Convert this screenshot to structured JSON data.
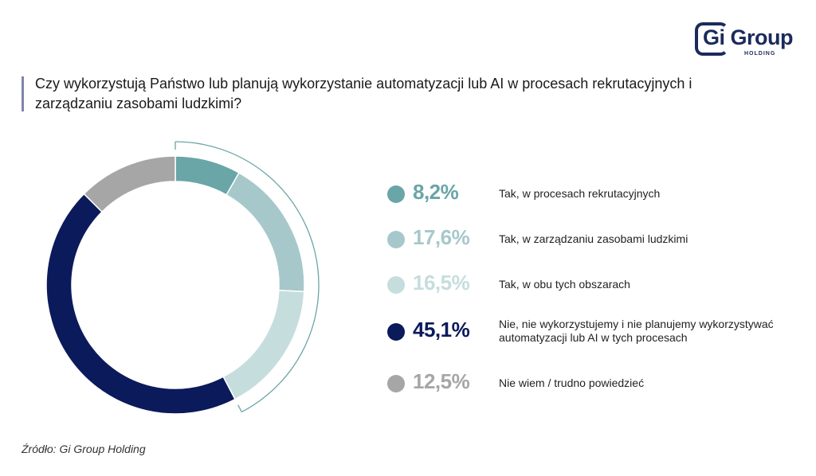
{
  "logo": {
    "text": "Gi Group",
    "sub": "HOLDING"
  },
  "title": "Czy wykorzystują Państwo lub planują wykorzystanie automatyzacji lub AI w procesach rekrutacyjnych i zarządzaniu zasobami ludzkimi?",
  "source": "Źródło: Gi Group Holding",
  "chart_data": {
    "type": "pie",
    "donut": true,
    "slices": [
      {
        "value": 8.2,
        "value_label": "8,2%",
        "label": "Tak, w procesach rekrutacyjnych",
        "color": "#6aa5a8"
      },
      {
        "value": 17.6,
        "value_label": "17,6%",
        "label": "Tak, w zarządzaniu zasobami ludzkimi",
        "color": "#a6c8ca"
      },
      {
        "value": 16.5,
        "value_label": "16,5%",
        "label": "Tak, w obu tych obszarach",
        "color": "#c6dddd"
      },
      {
        "value": 45.1,
        "value_label": "45,1%",
        "label": "Nie, nie wykorzystujemy i nie planujemy wykorzystywać automatyzacji lub AI w tych procesach",
        "color": "#0b1a5b"
      },
      {
        "value": 12.5,
        "value_label": "12,5%",
        "label": "Nie wiem / trudno powiedzieć",
        "color": "#a6a6a6"
      }
    ],
    "bracket_color": "#6aa5a8"
  }
}
